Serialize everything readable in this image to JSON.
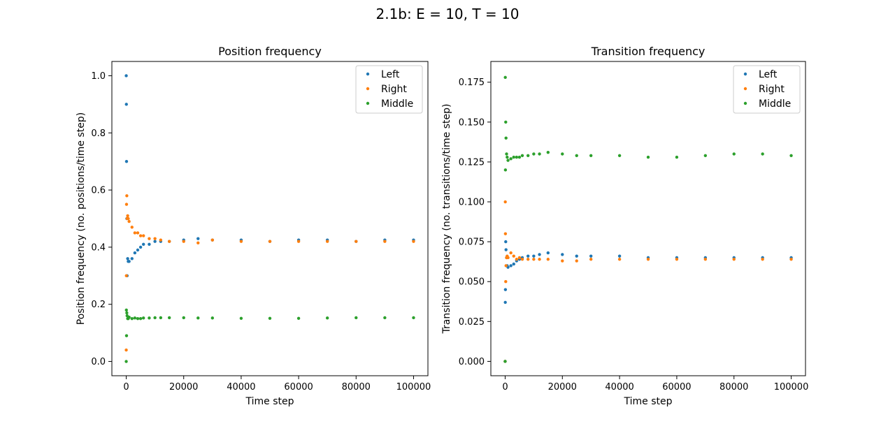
{
  "figure": {
    "suptitle": "2.1b: E = 10, T = 10"
  },
  "colors": {
    "Left": "#1f77b4",
    "Right": "#ff7f0e",
    "Middle": "#2ca02c"
  },
  "chart_data": [
    {
      "type": "scatter",
      "title": "Position frequency",
      "xlabel": "Time step",
      "ylabel": "Position frequency (no. positions/time step)",
      "xlim": [
        -5000,
        105000
      ],
      "ylim": [
        -0.05,
        1.05
      ],
      "xticks": [
        0,
        20000,
        40000,
        60000,
        80000,
        100000
      ],
      "xtick_labels": [
        "0",
        "20000",
        "40000",
        "60000",
        "80000",
        "100000"
      ],
      "yticks": [
        0.0,
        0.2,
        0.4,
        0.6,
        0.8,
        1.0
      ],
      "ytick_labels": [
        "0.0",
        "0.2",
        "0.4",
        "0.6",
        "0.8",
        "1.0"
      ],
      "legend": [
        "Left",
        "Right",
        "Middle"
      ],
      "legend_position": "top-right",
      "series": [
        {
          "name": "Left",
          "x": [
            0,
            50,
            100,
            200,
            300,
            500,
            700,
            1000,
            2000,
            3000,
            4000,
            5000,
            6000,
            8000,
            10000,
            12000,
            15000,
            20000,
            25000,
            30000,
            40000,
            50000,
            60000,
            70000,
            80000,
            90000,
            100000
          ],
          "y": [
            1.0,
            0.9,
            0.7,
            0.5,
            0.3,
            0.36,
            0.35,
            0.35,
            0.36,
            0.38,
            0.39,
            0.4,
            0.41,
            0.41,
            0.42,
            0.42,
            0.42,
            0.425,
            0.43,
            0.425,
            0.425,
            0.42,
            0.425,
            0.425,
            0.42,
            0.425,
            0.425
          ]
        },
        {
          "name": "Right",
          "x": [
            0,
            50,
            100,
            200,
            300,
            500,
            700,
            1000,
            2000,
            3000,
            4000,
            5000,
            6000,
            8000,
            10000,
            12000,
            15000,
            20000,
            25000,
            30000,
            40000,
            50000,
            60000,
            70000,
            80000,
            90000,
            100000
          ],
          "y": [
            0.04,
            0.3,
            0.55,
            0.58,
            0.5,
            0.51,
            0.5,
            0.49,
            0.47,
            0.45,
            0.45,
            0.44,
            0.44,
            0.43,
            0.43,
            0.425,
            0.42,
            0.42,
            0.415,
            0.425,
            0.42,
            0.42,
            0.42,
            0.42,
            0.42,
            0.42,
            0.42
          ]
        },
        {
          "name": "Middle",
          "x": [
            0,
            50,
            100,
            200,
            300,
            500,
            700,
            1000,
            2000,
            3000,
            4000,
            5000,
            6000,
            8000,
            10000,
            12000,
            15000,
            20000,
            25000,
            30000,
            40000,
            50000,
            60000,
            70000,
            80000,
            90000,
            100000
          ],
          "y": [
            0.0,
            0.18,
            0.09,
            0.17,
            0.16,
            0.15,
            0.15,
            0.155,
            0.15,
            0.152,
            0.15,
            0.15,
            0.152,
            0.152,
            0.153,
            0.153,
            0.153,
            0.153,
            0.152,
            0.152,
            0.151,
            0.151,
            0.151,
            0.152,
            0.153,
            0.153,
            0.153
          ]
        }
      ]
    },
    {
      "type": "scatter",
      "title": "Transition frequency",
      "xlabel": "Time step",
      "ylabel": "Transition frequency (no. transitions/time step)",
      "xlim": [
        -5000,
        105000
      ],
      "ylim": [
        -0.009,
        0.188
      ],
      "xticks": [
        0,
        20000,
        40000,
        60000,
        80000,
        100000
      ],
      "xtick_labels": [
        "0",
        "20000",
        "40000",
        "60000",
        "80000",
        "100000"
      ],
      "yticks": [
        0.0,
        0.025,
        0.05,
        0.075,
        0.1,
        0.125,
        0.15,
        0.175
      ],
      "ytick_labels": [
        "0.000",
        "0.025",
        "0.050",
        "0.075",
        "0.100",
        "0.125",
        "0.150",
        "0.175"
      ],
      "legend": [
        "Left",
        "Right",
        "Middle"
      ],
      "legend_position": "top-right",
      "series": [
        {
          "name": "Left",
          "x": [
            0,
            50,
            100,
            200,
            300,
            500,
            700,
            1000,
            2000,
            3000,
            4000,
            5000,
            6000,
            8000,
            10000,
            12000,
            15000,
            20000,
            25000,
            30000,
            40000,
            50000,
            60000,
            70000,
            80000,
            90000,
            100000
          ],
          "y": [
            0.0,
            0.037,
            0.045,
            0.075,
            0.07,
            0.065,
            0.06,
            0.059,
            0.06,
            0.061,
            0.063,
            0.064,
            0.065,
            0.066,
            0.066,
            0.067,
            0.068,
            0.067,
            0.066,
            0.066,
            0.066,
            0.065,
            0.065,
            0.065,
            0.065,
            0.065,
            0.065
          ]
        },
        {
          "name": "Right",
          "x": [
            0,
            50,
            100,
            200,
            300,
            500,
            700,
            1000,
            2000,
            3000,
            4000,
            5000,
            6000,
            8000,
            10000,
            12000,
            15000,
            20000,
            25000,
            30000,
            40000,
            50000,
            60000,
            70000,
            80000,
            90000,
            100000
          ],
          "y": [
            0.0,
            0.1,
            0.08,
            0.05,
            0.06,
            0.065,
            0.066,
            0.065,
            0.068,
            0.066,
            0.064,
            0.065,
            0.064,
            0.064,
            0.064,
            0.064,
            0.064,
            0.063,
            0.063,
            0.064,
            0.064,
            0.064,
            0.064,
            0.064,
            0.064,
            0.064,
            0.064
          ]
        },
        {
          "name": "Middle",
          "x": [
            0,
            50,
            100,
            200,
            300,
            500,
            700,
            1000,
            2000,
            3000,
            4000,
            5000,
            6000,
            8000,
            10000,
            12000,
            15000,
            20000,
            25000,
            30000,
            40000,
            50000,
            60000,
            70000,
            80000,
            90000,
            100000
          ],
          "y": [
            0.0,
            0.178,
            0.12,
            0.15,
            0.14,
            0.13,
            0.128,
            0.126,
            0.127,
            0.128,
            0.128,
            0.128,
            0.129,
            0.129,
            0.13,
            0.13,
            0.131,
            0.13,
            0.129,
            0.129,
            0.129,
            0.128,
            0.128,
            0.129,
            0.13,
            0.13,
            0.129
          ]
        }
      ]
    }
  ]
}
